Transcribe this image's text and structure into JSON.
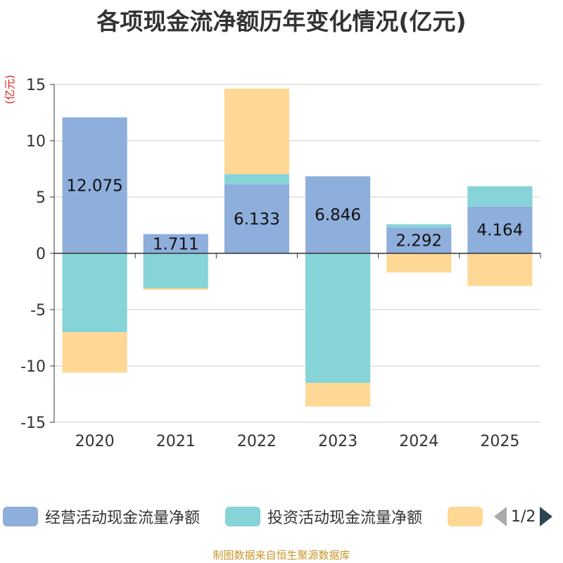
{
  "title": "各项现金流净额历年变化情况(亿元)",
  "unit_label": "(亿元)",
  "source": "制图数据来自恒生聚源数据库",
  "legend": {
    "items": [
      {
        "label": "经营活动现金流量净额",
        "color": "#8eaedb"
      },
      {
        "label": "投资活动现金流量净额",
        "color": "#86d4d8"
      },
      {
        "label": "",
        "color": "#ffd896"
      }
    ],
    "page": "1/2"
  },
  "chart_data": {
    "type": "bar",
    "stacked": true,
    "categories": [
      "2020",
      "2021",
      "2022",
      "2023",
      "2024",
      "2025"
    ],
    "ylim": [
      -15,
      15
    ],
    "yticks": [
      15,
      10,
      5,
      0,
      -5,
      -10,
      -15
    ],
    "ytick_labels": [
      "15",
      "10",
      "5",
      "0",
      "-5",
      "-10",
      "-15"
    ],
    "series": [
      {
        "name": "经营活动现金流量净额",
        "color": "#8eaedb",
        "values": [
          12.075,
          1.711,
          6.133,
          6.846,
          2.292,
          4.164
        ],
        "labels": [
          "12.075",
          "1.711",
          "6.133",
          "6.846",
          "2.292",
          "4.164"
        ]
      },
      {
        "name": "投资活动现金流量净额",
        "color": "#86d4d8",
        "values": [
          -7.0,
          -3.1,
          0.9,
          -11.5,
          0.3,
          1.8
        ]
      },
      {
        "name": "",
        "color": "#ffd896",
        "values": [
          -3.6,
          -0.15,
          7.6,
          -2.1,
          -1.7,
          -2.9
        ]
      }
    ]
  }
}
